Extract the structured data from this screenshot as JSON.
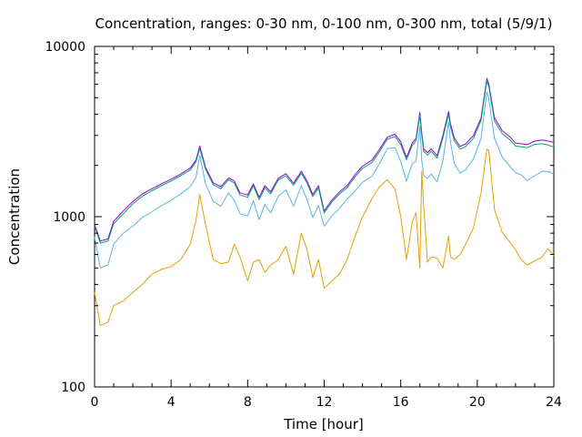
{
  "chart_data": {
    "type": "line",
    "title": "Concentration, ranges: 0-30 nm, 0-100 nm, 0-300 nm, total (5/9/1)",
    "xlabel": "Time [hour]",
    "ylabel": "Concentration",
    "xlim": [
      0,
      24
    ],
    "ylim": [
      100,
      10000
    ],
    "y_scale": "log",
    "grid": false,
    "x_ticks": [
      0,
      4,
      8,
      12,
      16,
      20,
      24
    ],
    "y_ticks": [
      100,
      1000,
      10000
    ],
    "x_tick_labels": [
      "0",
      "4",
      "8",
      "12",
      "16",
      "20",
      "24"
    ],
    "y_tick_labels": [
      "100",
      "1000",
      "10000"
    ],
    "colors": {
      "0-30 nm": "#e69f00",
      "0-100 nm": "#56b4e9",
      "0-300 nm": "#009e73",
      "total": "#9400d3"
    },
    "x": [
      0,
      0.3,
      0.7,
      1.0,
      1.5,
      2.0,
      2.5,
      3.0,
      3.5,
      4.0,
      4.5,
      5.0,
      5.3,
      5.5,
      5.8,
      6.2,
      6.6,
      7.0,
      7.3,
      7.6,
      8.0,
      8.3,
      8.6,
      8.9,
      9.2,
      9.6,
      10.0,
      10.4,
      10.8,
      11.1,
      11.4,
      11.7,
      12.0,
      12.4,
      12.8,
      13.2,
      13.6,
      14.0,
      14.5,
      14.9,
      15.3,
      15.7,
      16.0,
      16.3,
      16.6,
      16.8,
      17.0,
      17.1,
      17.2,
      17.4,
      17.6,
      17.9,
      18.2,
      18.5,
      18.6,
      18.8,
      19.1,
      19.4,
      19.8,
      20.2,
      20.5,
      20.6,
      20.9,
      21.3,
      21.7,
      22.0,
      22.3,
      22.6,
      23.0,
      23.4,
      23.7,
      24.0
    ],
    "series": [
      {
        "name": "total",
        "values": [
          900,
          720,
          740,
          940,
          1080,
          1230,
          1360,
          1460,
          1560,
          1660,
          1780,
          1930,
          2150,
          2600,
          1950,
          1580,
          1500,
          1690,
          1620,
          1380,
          1340,
          1560,
          1300,
          1520,
          1400,
          1680,
          1790,
          1570,
          1850,
          1620,
          1350,
          1520,
          1080,
          1250,
          1400,
          1520,
          1760,
          1980,
          2150,
          2500,
          2930,
          3050,
          2750,
          2230,
          2700,
          2880,
          4100,
          3100,
          2500,
          2380,
          2500,
          2280,
          3000,
          4150,
          3500,
          2900,
          2580,
          2680,
          3000,
          3800,
          6500,
          6000,
          3800,
          3200,
          2950,
          2700,
          2680,
          2650,
          2780,
          2820,
          2780,
          2730
        ]
      },
      {
        "name": "0-300 nm",
        "values": [
          880,
          700,
          720,
          910,
          1040,
          1190,
          1320,
          1420,
          1520,
          1620,
          1740,
          1880,
          2100,
          2520,
          1900,
          1540,
          1460,
          1650,
          1580,
          1340,
          1300,
          1520,
          1260,
          1480,
          1360,
          1640,
          1740,
          1530,
          1800,
          1580,
          1310,
          1480,
          1050,
          1220,
          1360,
          1480,
          1710,
          1920,
          2080,
          2420,
          2850,
          2960,
          2650,
          2160,
          2620,
          2790,
          3950,
          2990,
          2420,
          2300,
          2420,
          2210,
          2900,
          4000,
          3380,
          2800,
          2490,
          2590,
          2890,
          3680,
          6300,
          5800,
          3650,
          3080,
          2830,
          2600,
          2570,
          2540,
          2660,
          2680,
          2640,
          2560
        ]
      },
      {
        "name": "0-100 nm",
        "values": [
          760,
          500,
          520,
          690,
          800,
          880,
          990,
          1070,
          1160,
          1250,
          1360,
          1500,
          1700,
          2300,
          1560,
          1230,
          1150,
          1380,
          1250,
          1040,
          1010,
          1240,
          960,
          1180,
          1050,
          1320,
          1440,
          1150,
          1520,
          1260,
          990,
          1160,
          880,
          1010,
          1120,
          1270,
          1410,
          1590,
          1730,
          2060,
          2510,
          2540,
          2100,
          1620,
          2050,
          2120,
          3400,
          2150,
          1740,
          1680,
          1780,
          1600,
          2120,
          3620,
          2720,
          2060,
          1800,
          1890,
          2180,
          2880,
          5400,
          4900,
          2880,
          2240,
          1980,
          1810,
          1760,
          1630,
          1740,
          1850,
          1840,
          1780
        ]
      },
      {
        "name": "0-30 nm",
        "values": [
          360,
          230,
          240,
          300,
          320,
          360,
          400,
          460,
          490,
          510,
          560,
          690,
          950,
          1350,
          900,
          560,
          530,
          540,
          690,
          580,
          420,
          540,
          560,
          470,
          520,
          560,
          670,
          460,
          800,
          640,
          440,
          560,
          380,
          420,
          460,
          560,
          760,
          1000,
          1280,
          1500,
          1650,
          1450,
          1000,
          560,
          930,
          1060,
          500,
          1850,
          1150,
          540,
          580,
          570,
          500,
          770,
          580,
          560,
          600,
          690,
          860,
          1380,
          2500,
          2450,
          1100,
          810,
          710,
          640,
          560,
          520,
          550,
          580,
          650,
          590
        ]
      }
    ]
  }
}
